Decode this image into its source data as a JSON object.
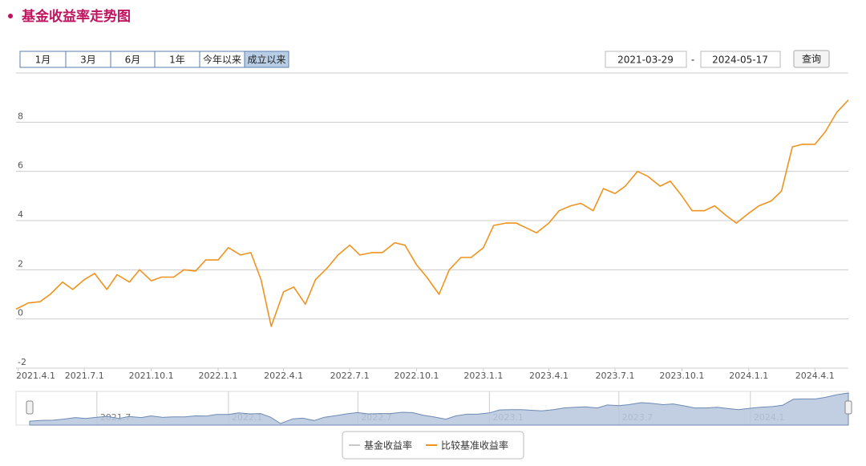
{
  "header": {
    "title": "基金收益率走势图"
  },
  "buttons": [
    "1月",
    "3月",
    "6月",
    "1年",
    "今年以来",
    "成立以来"
  ],
  "active_button_index": 5,
  "date_range": {
    "start": "2021-03-29",
    "separator": "-",
    "end": "2024-05-17"
  },
  "query_button": "查询",
  "chart_data": {
    "type": "line",
    "x": [
      "2021.3.29",
      "2021.4.15",
      "2021.5.1",
      "2021.5.15",
      "2021.6.1",
      "2021.6.15",
      "2021.7.1",
      "2021.7.15",
      "2021.8.1",
      "2021.8.15",
      "2021.9.1",
      "2021.9.15",
      "2021.10.1",
      "2021.10.15",
      "2021.11.1",
      "2021.11.15",
      "2021.12.1",
      "2021.12.15",
      "2022.1.1",
      "2022.1.15",
      "2022.2.1",
      "2022.2.15",
      "2022.3.1",
      "2022.3.15",
      "2022.4.1",
      "2022.4.15",
      "2022.5.1",
      "2022.5.15",
      "2022.6.1",
      "2022.6.15",
      "2022.7.1",
      "2022.7.15",
      "2022.8.1",
      "2022.8.15",
      "2022.9.1",
      "2022.9.15",
      "2022.10.1",
      "2022.10.15",
      "2022.11.1",
      "2022.11.15",
      "2022.12.1",
      "2022.12.15",
      "2023.1.1",
      "2023.1.15",
      "2023.2.1",
      "2023.2.15",
      "2023.3.1",
      "2023.3.15",
      "2023.4.1",
      "2023.4.15",
      "2023.5.1",
      "2023.5.15",
      "2023.6.1",
      "2023.6.15",
      "2023.7.1",
      "2023.7.15",
      "2023.8.1",
      "2023.8.15",
      "2023.9.1",
      "2023.9.15",
      "2023.10.1",
      "2023.10.15",
      "2023.11.1",
      "2023.11.15",
      "2023.12.1",
      "2023.12.15",
      "2024.1.1",
      "2024.1.15",
      "2024.2.1",
      "2024.2.15",
      "2024.3.1",
      "2024.3.15",
      "2024.4.1",
      "2024.4.15",
      "2024.5.1",
      "2024.5.17"
    ],
    "series": [
      {
        "name": "基金收益率",
        "color": "#c8c8c8",
        "visible": false
      },
      {
        "name": "比较基准收益率",
        "color": "#f0931e",
        "visible": true,
        "values": [
          0.4,
          0.65,
          0.7,
          1.0,
          1.5,
          1.2,
          1.6,
          1.85,
          1.2,
          1.8,
          1.5,
          2.0,
          1.55,
          1.7,
          1.7,
          2.0,
          1.95,
          2.4,
          2.4,
          2.9,
          2.6,
          2.7,
          1.6,
          -0.3,
          1.1,
          1.3,
          0.6,
          1.6,
          2.1,
          2.6,
          3.0,
          2.6,
          2.7,
          2.7,
          3.1,
          3.0,
          2.2,
          1.7,
          1.0,
          2.0,
          2.5,
          2.5,
          2.9,
          3.8,
          3.9,
          3.9,
          3.7,
          3.5,
          3.9,
          4.4,
          4.6,
          4.7,
          4.4,
          5.3,
          5.1,
          5.4,
          6.0,
          5.8,
          5.4,
          5.6,
          5.0,
          4.4,
          4.4,
          4.6,
          4.2,
          3.9,
          4.3,
          4.6,
          4.8,
          5.2,
          7.0,
          7.1,
          7.1,
          7.6,
          8.4,
          8.9
        ]
      }
    ],
    "xlim": [
      "2021.3.29",
      "2024.5.17"
    ],
    "xticks": [
      "2021.4.1",
      "2021.7.1",
      "2021.10.1",
      "2022.1.1",
      "2022.4.1",
      "2022.7.1",
      "2022.10.1",
      "2023.1.1",
      "2023.4.1",
      "2023.7.1",
      "2023.10.1",
      "2024.1.1",
      "2024.4.1"
    ],
    "ylim": [
      -2,
      10
    ],
    "yticks": [
      -2,
      0,
      2,
      4,
      6,
      8
    ],
    "grid": true,
    "navigator": {
      "xticks": [
        {
          "value": "2021.7.1",
          "label": "2021.7"
        },
        {
          "value": "2022.1.1",
          "label": "2022.1"
        },
        {
          "value": "2022.7.1",
          "label": "2022.7"
        },
        {
          "value": "2023.1.1",
          "label": "2023.1"
        },
        {
          "value": "2023.7.1",
          "label": "2023.7"
        },
        {
          "value": "2024.1.1",
          "label": "2024.1"
        }
      ]
    }
  }
}
